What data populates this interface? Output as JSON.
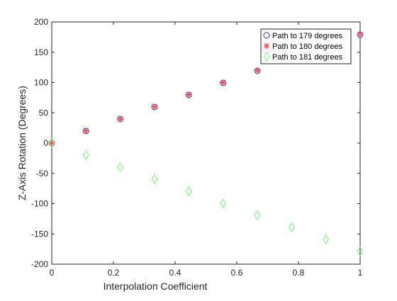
{
  "chart_data": {
    "type": "scatter",
    "title": "",
    "xlabel": "Interpolation Coefficient",
    "ylabel": "Z-Axis Rotation (Degrees)",
    "xlim": [
      0,
      1
    ],
    "ylim": [
      -200,
      200
    ],
    "xticks": [
      0,
      0.2,
      0.4,
      0.6,
      0.8,
      1
    ],
    "xtick_labels": [
      "0",
      "0.2",
      "0.4",
      "0.6",
      "0.8",
      "1"
    ],
    "yticks": [
      -200,
      -150,
      -100,
      -50,
      0,
      50,
      100,
      150,
      200
    ],
    "ytick_labels": [
      "-200",
      "-150",
      "-100",
      "-50",
      "0",
      "50",
      "100",
      "150",
      "200"
    ],
    "grid": false,
    "legend_position": "top-right",
    "series": [
      {
        "name": "Path to 179 degrees",
        "marker": "circle",
        "color": "#3333cc",
        "x": [
          0,
          0.1111,
          0.2222,
          0.3333,
          0.4444,
          0.5556,
          0.6667,
          1
        ],
        "y": [
          0,
          19.9,
          39.8,
          59.7,
          79.6,
          99.4,
          119.3,
          179
        ]
      },
      {
        "name": "Path to 180 degrees",
        "marker": "asterisk",
        "color": "#ff3333",
        "x": [
          0,
          0.1111,
          0.2222,
          0.3333,
          0.4444,
          0.5556,
          0.6667,
          1
        ],
        "y": [
          0,
          20,
          40,
          60,
          80,
          100,
          120,
          180
        ]
      },
      {
        "name": "Path to 181 degrees",
        "marker": "diamond",
        "color": "#66ff66",
        "x": [
          0,
          0.1111,
          0.2222,
          0.3333,
          0.4444,
          0.5556,
          0.6667,
          0.7778,
          0.8889,
          1
        ],
        "y": [
          0,
          -19.9,
          -39.8,
          -59.7,
          -79.6,
          -99.4,
          -119.3,
          -139.2,
          -159.1,
          -179
        ]
      }
    ]
  }
}
